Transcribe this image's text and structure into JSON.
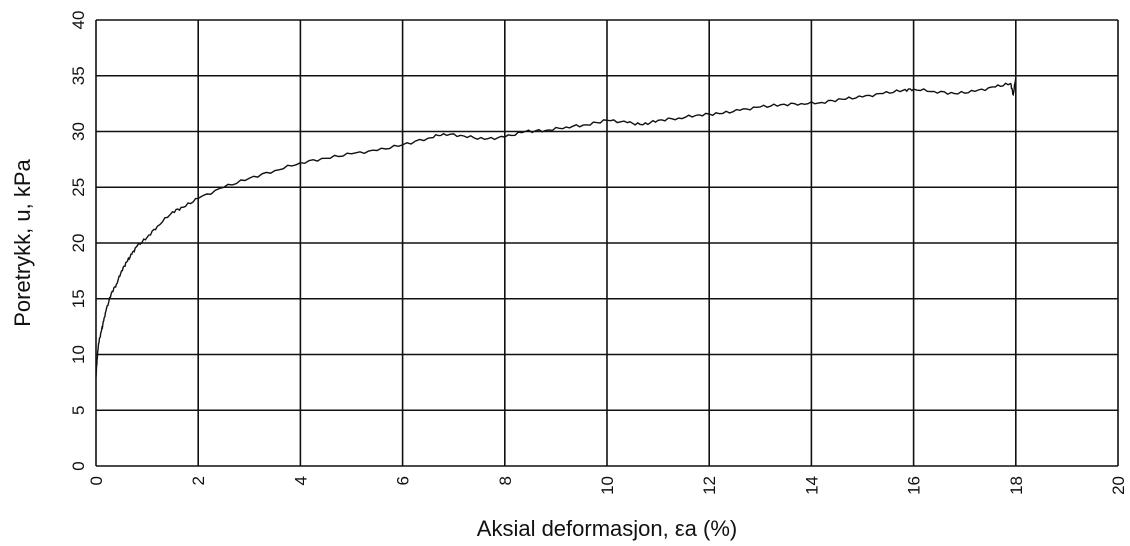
{
  "chart_data": {
    "type": "line",
    "xlabel": "Aksial deformasjon, εa (%)",
    "ylabel": "Poretrykk, u, kPa",
    "xlim": [
      0,
      20
    ],
    "ylim": [
      0,
      40
    ],
    "x_ticks": [
      "0",
      "2",
      "4",
      "6",
      "8",
      "10",
      "12",
      "14",
      "16",
      "18",
      "20"
    ],
    "y_ticks": [
      "0",
      "5",
      "10",
      "15",
      "20",
      "25",
      "30",
      "35",
      "40"
    ],
    "grid": true,
    "series": [
      {
        "x": [
          0.0,
          0.02,
          0.05,
          0.1,
          0.15,
          0.2,
          0.3,
          0.4,
          0.5,
          0.6,
          0.7,
          0.8,
          1.0,
          1.2,
          1.5,
          1.7,
          2.0,
          2.5,
          3.0,
          3.5,
          4.0,
          4.5,
          5.0,
          5.5,
          6.0,
          6.5,
          6.8,
          7.2,
          7.6,
          8.0,
          8.4,
          8.8,
          9.2,
          9.6,
          10.0,
          10.4,
          10.7,
          11.0,
          11.4,
          11.8,
          12.2,
          12.6,
          13.0,
          13.4,
          13.8,
          14.2,
          14.6,
          15.0,
          15.4,
          15.8,
          16.0,
          16.4,
          16.8,
          17.2,
          17.6,
          17.9,
          17.95,
          18.0
        ],
        "y": [
          8.0,
          9.5,
          11.0,
          12.0,
          13.0,
          14.0,
          15.5,
          16.3,
          17.5,
          18.3,
          19.0,
          19.7,
          20.5,
          21.5,
          22.8,
          23.2,
          24.0,
          25.0,
          25.8,
          26.5,
          27.2,
          27.6,
          28.0,
          28.3,
          28.8,
          29.4,
          29.8,
          29.6,
          29.3,
          29.5,
          30.0,
          30.1,
          30.4,
          30.6,
          31.0,
          30.8,
          30.6,
          31.0,
          31.2,
          31.5,
          31.6,
          31.9,
          32.2,
          32.4,
          32.5,
          32.6,
          32.9,
          33.1,
          33.4,
          33.7,
          33.8,
          33.6,
          33.4,
          33.6,
          34.0,
          34.3,
          33.3,
          34.9
        ]
      }
    ]
  }
}
